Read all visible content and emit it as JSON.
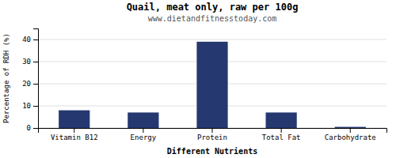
{
  "chart_data": {
    "type": "bar",
    "title": "Quail, meat only, raw per 100g",
    "subtitle": "www.dietandfitnesstoday.com",
    "xlabel": "Different Nutrients",
    "ylabel": "Percentage of RDH (%)",
    "categories": [
      "Vitamin B12",
      "Energy",
      "Protein",
      "Total Fat",
      "Carbohydrate"
    ],
    "values": [
      8.0,
      7.0,
      39.0,
      7.0,
      0.5
    ],
    "color": "#253870",
    "ylim": [
      0,
      45
    ],
    "yticks": [
      0,
      10,
      20,
      30,
      40
    ],
    "grid": true
  }
}
